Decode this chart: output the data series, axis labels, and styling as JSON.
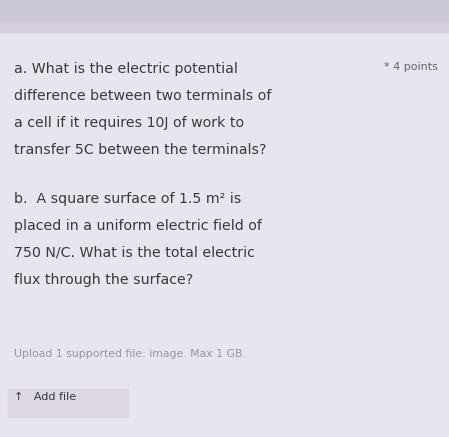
{
  "background_color": "#e9e5ee",
  "top_bar_color": "#cdc8d6",
  "text_color": "#3a3a3a",
  "small_text_color": "#999999",
  "star_color": "#666666",
  "line1_a": "a. What is the electric potential",
  "line2_a": "difference between two terminals of",
  "line3_a": "a cell if it requires 10J of work to",
  "line4_a": "transfer 5C between the terminals?",
  "points_label": "* 4 points",
  "line1_b": "b.  A square surface of 1.5 m² is",
  "line2_b": "placed in a uniform electric field of",
  "line3_b": "750 N/C. What is the total electric",
  "line4_b": "flux through the surface?",
  "upload_text": "Upload 1 supported file: image. Max 1 GB.",
  "add_file_text": "↑   Add file",
  "font_size_main": 10.2,
  "font_size_small": 8.0,
  "font_size_upload": 7.8
}
